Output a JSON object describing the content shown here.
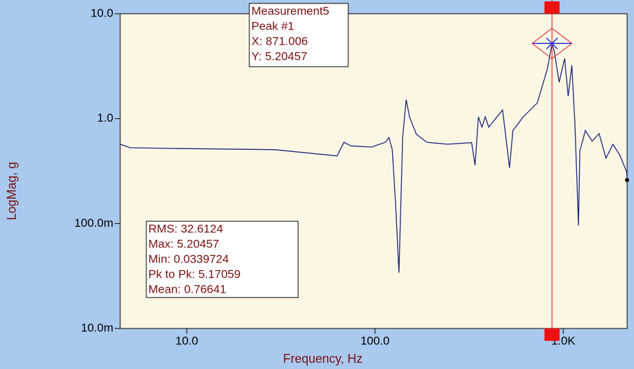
{
  "chart_data": {
    "type": "line",
    "x_label": "Frequency, Hz",
    "y_label": "LogMag, g",
    "log_x": true,
    "log_y": true,
    "color": "#1a237e",
    "x": [
      4.43,
      5.01,
      8.31,
      29.4,
      62.9,
      68.4,
      74.4,
      95.9,
      113.5,
      118.4,
      123.5,
      128.8,
      134,
      140.2,
      146.3,
      152.5,
      165.8,
      188.3,
      242.4,
      325.8,
      339.7,
      354,
      369.5,
      385,
      401.7,
      476,
      518,
      540,
      613,
      727,
      824,
      871.006,
      896,
      950,
      1016,
      1062,
      1110,
      1153,
      1204,
      1224,
      1310,
      1424,
      1550,
      1686,
      1834,
      1995,
      2171,
      2180
    ],
    "y": [
      0.57,
      0.528,
      0.52,
      0.506,
      0.441,
      0.596,
      0.55,
      0.536,
      0.596,
      0.66,
      0.506,
      0.147,
      0.0339724,
      0.66,
      1.52,
      1.04,
      0.71,
      0.596,
      0.57,
      0.59,
      0.36,
      1.04,
      0.83,
      1.04,
      0.83,
      1.21,
      0.34,
      0.77,
      1.04,
      1.41,
      2.99,
      5.20457,
      4.36,
      2.22,
      3.75,
      1.64,
      3.22,
      0.89,
      0.096,
      0.49,
      0.77,
      0.61,
      0.72,
      0.42,
      0.57,
      0.45,
      0.31,
      0.26
    ],
    "xlim": [
      4.43,
      2183
    ],
    "ylim": [
      0.01,
      10
    ],
    "xticks": [
      {
        "value": 10,
        "label": "10.0"
      },
      {
        "value": 100,
        "label": "100.0"
      },
      {
        "value": 1000,
        "label": "1.0K"
      }
    ],
    "yticks": [
      {
        "value": 0.01,
        "label": "10.0m"
      },
      {
        "value": 0.1,
        "label": "100.0m"
      },
      {
        "value": 1,
        "label": "1.0"
      },
      {
        "value": 10,
        "label": "10.0"
      }
    ],
    "peak_box": [
      "Measurement5",
      "Peak #1",
      " X: 871.006",
      " Y: 5.20457"
    ],
    "stats_box": [
      "RMS: 32.6124",
      "Max: 5.20457",
      "Min: 0.0339724",
      "Pk to Pk: 5.17059",
      "Mean: 0.76641"
    ]
  }
}
